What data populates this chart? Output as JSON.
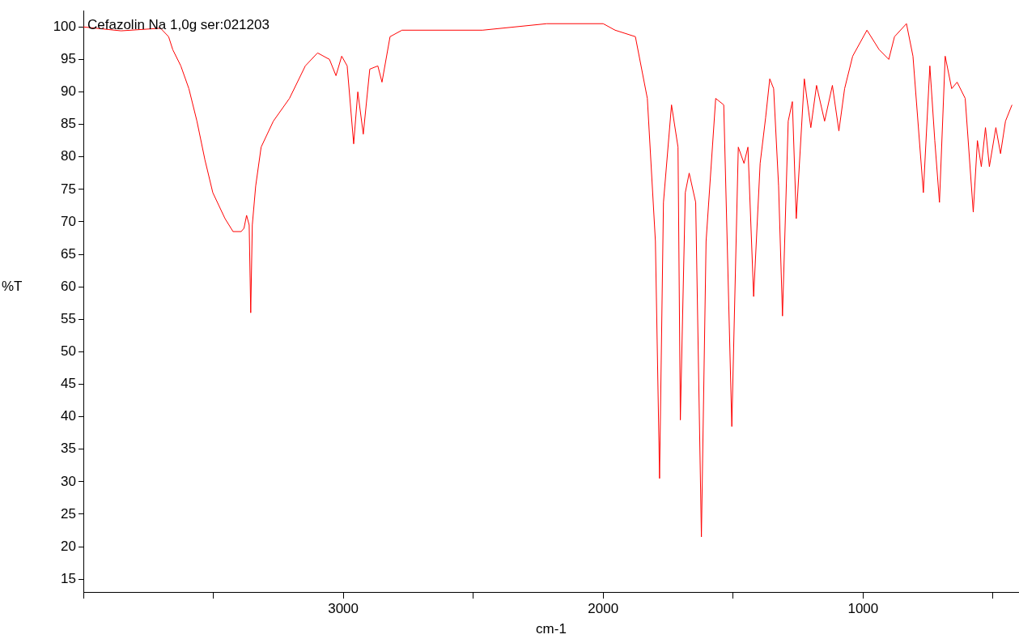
{
  "chart_data": {
    "type": "line",
    "title": "Cefazolin Na 1,0g ser:021203",
    "xlabel": "cm-1",
    "ylabel": "%T",
    "xlim": [
      4000,
      400
    ],
    "ylim": [
      13,
      102.5
    ],
    "xticks": [
      {
        "value": 4000,
        "label": null
      },
      {
        "value": 3500,
        "label": null
      },
      3000,
      {
        "value": 2500,
        "label": null
      },
      2000,
      {
        "value": 1500,
        "label": null
      },
      1000,
      {
        "value": 500,
        "label": null
      }
    ],
    "yticks": [
      15,
      20,
      25,
      30,
      35,
      40,
      45,
      50,
      55,
      60,
      65,
      70,
      75,
      80,
      85,
      90,
      95,
      100
    ],
    "grid": false,
    "legend": false,
    "marker": "none",
    "line_style": "solid",
    "x": [
      4000,
      3855,
      3703,
      3672,
      3656,
      3625,
      3594,
      3563,
      3532,
      3502,
      3455,
      3424,
      3393,
      3382,
      3372,
      3362,
      3356,
      3350,
      3337,
      3316,
      3269,
      3207,
      3146,
      3099,
      3053,
      3028,
      3006,
      2985,
      2960,
      2944,
      2923,
      2898,
      2867,
      2851,
      2820,
      2774,
      2464,
      2217,
      2000,
      1954,
      1876,
      1830,
      1799,
      1783,
      1768,
      1737,
      1712,
      1703,
      1684,
      1669,
      1644,
      1622,
      1604,
      1567,
      1536,
      1505,
      1480,
      1458,
      1443,
      1421,
      1396,
      1375,
      1359,
      1344,
      1325,
      1310,
      1288,
      1272,
      1257,
      1226,
      1201,
      1179,
      1148,
      1118,
      1093,
      1071,
      1040,
      985,
      938,
      901,
      879,
      833,
      808,
      768,
      743,
      724,
      706,
      684,
      659,
      638,
      607,
      576,
      560,
      545,
      529,
      514,
      489,
      471,
      452,
      427
    ],
    "series": [
      {
        "color": "#ff0000",
        "values": [
          100,
          99.4,
          99.8,
          98.5,
          96.5,
          94,
          90.5,
          85.5,
          79.5,
          74.5,
          70.5,
          68.5,
          68.5,
          69,
          71,
          69.5,
          56,
          69.5,
          75.5,
          81.5,
          85.5,
          89,
          94,
          96,
          95,
          92.5,
          95.5,
          94,
          82,
          90,
          83.5,
          93.5,
          94,
          91.5,
          98.5,
          99.5,
          99.5,
          100.5,
          100.5,
          99.5,
          98.5,
          89,
          67,
          30.5,
          73,
          88,
          81.5,
          39.5,
          74.5,
          77.5,
          73,
          21.5,
          67,
          89,
          88,
          38.5,
          81.5,
          79,
          81.5,
          58.5,
          79,
          86,
          92,
          90.5,
          75.5,
          55.5,
          85.5,
          88.5,
          70.5,
          92,
          84.5,
          91,
          85.5,
          91,
          84,
          90.5,
          95.5,
          99.5,
          96.5,
          95,
          98.5,
          100.5,
          95.5,
          74.5,
          94,
          82.5,
          73,
          95.5,
          90.5,
          91.5,
          89,
          71.5,
          82.5,
          78.5,
          84.5,
          78.5,
          84.5,
          80.5,
          85.5,
          88
        ]
      }
    ]
  }
}
